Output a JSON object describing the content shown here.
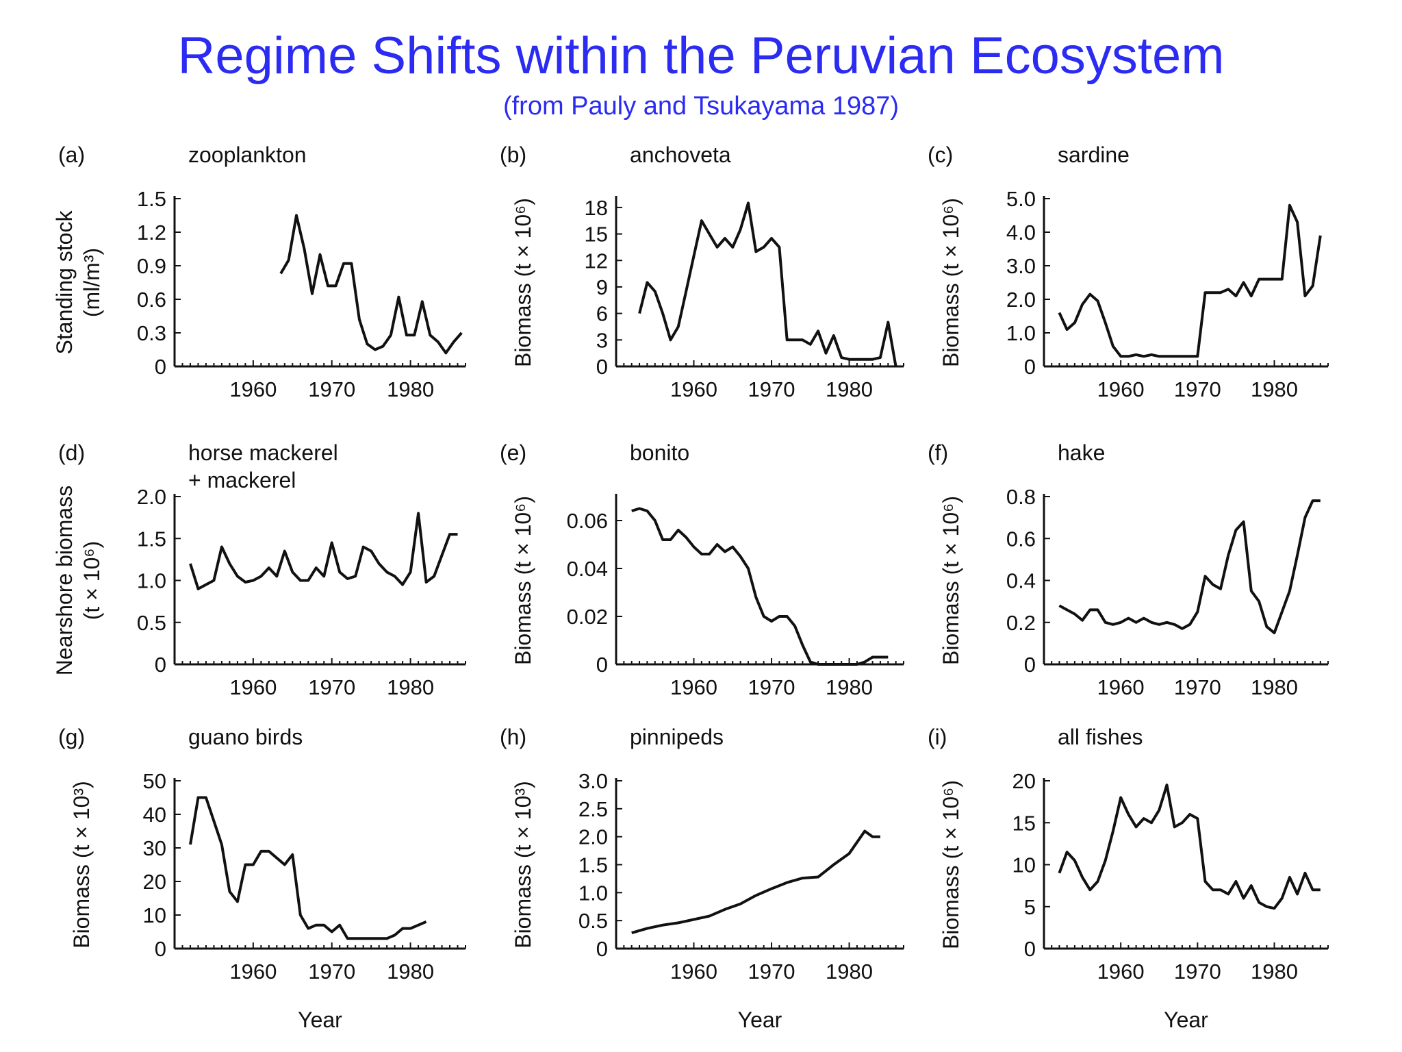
{
  "title": "Regime Shifts within the Peruvian Ecosystem",
  "subtitle": "(from Pauly and Tsukayama 1987)",
  "chart_data": [
    {
      "type": "line",
      "panel": "(a)",
      "title": "zooplankton",
      "ylabel": "Standing stock",
      "ylabel2": "(ml/m³)",
      "xlim": [
        1950,
        1987
      ],
      "ylim": [
        0,
        1.5
      ],
      "xticks": [
        "1960",
        "1970",
        "1980"
      ],
      "yticks": [
        "0",
        "0.3",
        "0.6",
        "0.9",
        "1.2",
        "1.5"
      ],
      "x": [
        1963.5,
        1964.5,
        1965.5,
        1966.5,
        1967.5,
        1968.5,
        1969.5,
        1970.5,
        1971.5,
        1972.5,
        1973.5,
        1974.5,
        1975.5,
        1976.5,
        1977.5,
        1978.5,
        1979.5,
        1980.5,
        1981.5,
        1982.5,
        1983.5,
        1984.5,
        1985.5,
        1986.5
      ],
      "y": [
        0.83,
        0.95,
        1.35,
        1.05,
        0.65,
        1.0,
        0.72,
        0.72,
        0.92,
        0.92,
        0.42,
        0.2,
        0.15,
        0.18,
        0.28,
        0.62,
        0.28,
        0.28,
        0.58,
        0.28,
        0.22,
        0.12,
        0.22,
        0.3
      ]
    },
    {
      "type": "line",
      "panel": "(b)",
      "title": "anchoveta",
      "ylabel": "Biomass  (t × 10⁶)",
      "xlim": [
        1950,
        1987
      ],
      "ylim": [
        0,
        19
      ],
      "xticks": [
        "1960",
        "1970",
        "1980"
      ],
      "yticks": [
        "0",
        "3",
        "6",
        "9",
        "12",
        "15",
        "18"
      ],
      "x": [
        1953,
        1954,
        1955,
        1956,
        1957,
        1958,
        1959,
        1960,
        1961,
        1962,
        1963,
        1964,
        1965,
        1966,
        1967,
        1968,
        1969,
        1970,
        1971,
        1972,
        1973,
        1974,
        1975,
        1976,
        1977,
        1978,
        1979,
        1980,
        1981,
        1982,
        1983,
        1984,
        1985,
        1986
      ],
      "y": [
        6,
        9.5,
        8.5,
        6,
        3,
        4.5,
        8.5,
        12.5,
        16.5,
        15,
        13.5,
        14.5,
        13.5,
        15.5,
        18.5,
        13,
        13.5,
        14.5,
        13.5,
        3,
        3,
        3,
        2.5,
        4,
        1.5,
        3.5,
        1,
        0.8,
        0.8,
        0.8,
        0.8,
        1,
        5,
        0
      ]
    },
    {
      "type": "line",
      "panel": "(c)",
      "title": "sardine",
      "ylabel": "Biomass  (t × 10⁶)",
      "xlim": [
        1950,
        1987
      ],
      "ylim": [
        0,
        5.0
      ],
      "xticks": [
        "1960",
        "1970",
        "1980"
      ],
      "yticks": [
        "0",
        "1.0",
        "2.0",
        "3.0",
        "4.0",
        "5.0"
      ],
      "x": [
        1952,
        1953,
        1954,
        1955,
        1956,
        1957,
        1958,
        1959,
        1960,
        1961,
        1962,
        1963,
        1964,
        1965,
        1966,
        1967,
        1968,
        1969,
        1970,
        1971,
        1972,
        1973,
        1974,
        1975,
        1976,
        1977,
        1978,
        1979,
        1980,
        1981,
        1982,
        1983,
        1984,
        1985,
        1986
      ],
      "y": [
        1.6,
        1.1,
        1.3,
        1.85,
        2.15,
        1.95,
        1.3,
        0.6,
        0.3,
        0.3,
        0.35,
        0.3,
        0.35,
        0.3,
        0.3,
        0.3,
        0.3,
        0.3,
        0.3,
        2.2,
        2.2,
        2.2,
        2.3,
        2.1,
        2.5,
        2.1,
        2.6,
        2.6,
        2.6,
        2.6,
        4.8,
        4.3,
        2.1,
        2.4,
        3.9
      ]
    },
    {
      "type": "line",
      "panel": "(d)",
      "title": "horse mackerel",
      "title2": "+ mackerel",
      "ylabel": "Nearshore biomass",
      "ylabel2": "(t × 10⁶)",
      "xlim": [
        1950,
        1987
      ],
      "ylim": [
        0,
        2.0
      ],
      "xticks": [
        "1960",
        "1970",
        "1980"
      ],
      "yticks": [
        "0",
        "0.5",
        "1.0",
        "1.5",
        "2.0"
      ],
      "x": [
        1952,
        1953,
        1954,
        1955,
        1956,
        1957,
        1958,
        1959,
        1960,
        1961,
        1962,
        1963,
        1964,
        1965,
        1966,
        1967,
        1968,
        1969,
        1970,
        1971,
        1972,
        1973,
        1974,
        1975,
        1976,
        1977,
        1978,
        1979,
        1980,
        1981,
        1982,
        1983,
        1984,
        1985,
        1986
      ],
      "y": [
        1.2,
        0.9,
        0.95,
        1.0,
        1.4,
        1.2,
        1.05,
        0.98,
        1.0,
        1.05,
        1.15,
        1.05,
        1.35,
        1.1,
        1.0,
        1.0,
        1.15,
        1.05,
        1.45,
        1.1,
        1.02,
        1.05,
        1.4,
        1.35,
        1.2,
        1.1,
        1.05,
        0.95,
        1.1,
        1.8,
        0.98,
        1.05,
        1.3,
        1.55,
        1.55
      ]
    },
    {
      "type": "line",
      "panel": "(e)",
      "title": "bonito",
      "ylabel": "Biomass  (t × 10⁶)",
      "xlim": [
        1950,
        1987
      ],
      "ylim": [
        0,
        0.07
      ],
      "xticks": [
        "1960",
        "1970",
        "1980"
      ],
      "yticks": [
        "0",
        "0.02",
        "0.04",
        "0.06"
      ],
      "x": [
        1952,
        1953,
        1954,
        1955,
        1956,
        1957,
        1958,
        1959,
        1960,
        1961,
        1962,
        1963,
        1964,
        1965,
        1966,
        1967,
        1968,
        1969,
        1970,
        1971,
        1972,
        1973,
        1974,
        1975,
        1976,
        1977,
        1978,
        1979,
        1980,
        1981,
        1982,
        1983,
        1984,
        1985
      ],
      "y": [
        0.064,
        0.065,
        0.064,
        0.06,
        0.052,
        0.052,
        0.056,
        0.053,
        0.049,
        0.046,
        0.046,
        0.05,
        0.047,
        0.049,
        0.045,
        0.04,
        0.028,
        0.02,
        0.018,
        0.02,
        0.02,
        0.016,
        0.008,
        0.001,
        0,
        0,
        0,
        0,
        0,
        0,
        0.001,
        0.003,
        0.003,
        0.003
      ]
    },
    {
      "type": "line",
      "panel": "(f)",
      "title": "hake",
      "ylabel": "Biomass  (t × 10⁶)",
      "xlim": [
        1950,
        1987
      ],
      "ylim": [
        0,
        0.8
      ],
      "xticks": [
        "1960",
        "1970",
        "1980"
      ],
      "yticks": [
        "0",
        "0.2",
        "0.4",
        "0.6",
        "0.8"
      ],
      "x": [
        1952,
        1953,
        1954,
        1955,
        1956,
        1957,
        1958,
        1959,
        1960,
        1961,
        1962,
        1963,
        1964,
        1965,
        1966,
        1967,
        1968,
        1969,
        1970,
        1971,
        1972,
        1973,
        1974,
        1975,
        1976,
        1977,
        1978,
        1979,
        1980,
        1981,
        1982,
        1983,
        1984,
        1985,
        1986
      ],
      "y": [
        0.28,
        0.26,
        0.24,
        0.21,
        0.26,
        0.26,
        0.2,
        0.19,
        0.2,
        0.22,
        0.2,
        0.22,
        0.2,
        0.19,
        0.2,
        0.19,
        0.17,
        0.19,
        0.25,
        0.42,
        0.38,
        0.36,
        0.52,
        0.64,
        0.68,
        0.35,
        0.3,
        0.18,
        0.15,
        0.25,
        0.35,
        0.52,
        0.7,
        0.78,
        0.78
      ]
    },
    {
      "type": "line",
      "panel": "(g)",
      "title": "guano birds",
      "ylabel": "Biomass  (t × 10³)",
      "xlim": [
        1950,
        1987
      ],
      "ylim": [
        0,
        50
      ],
      "xticks": [
        "1960",
        "1970",
        "1980"
      ],
      "yticks": [
        "0",
        "10",
        "20",
        "30",
        "40",
        "50"
      ],
      "x": [
        1952,
        1953,
        1954,
        1955,
        1956,
        1957,
        1958,
        1959,
        1960,
        1961,
        1962,
        1963,
        1964,
        1965,
        1966,
        1967,
        1968,
        1969,
        1970,
        1971,
        1972,
        1973,
        1974,
        1975,
        1976,
        1977,
        1978,
        1979,
        1980,
        1981,
        1982
      ],
      "y": [
        31,
        45,
        45,
        38,
        31,
        17,
        14,
        25,
        25,
        29,
        29,
        27,
        25,
        28,
        10,
        6,
        7,
        7,
        5,
        7,
        3,
        3,
        3,
        3,
        3,
        3,
        4,
        6,
        6,
        7,
        8
      ]
    },
    {
      "type": "line",
      "panel": "(h)",
      "title": "pinnipeds",
      "ylabel": "Biomass  (t × 10³)",
      "xlabel": "Year",
      "xlim": [
        1950,
        1987
      ],
      "ylim": [
        0,
        3.0
      ],
      "xticks": [
        "1960",
        "1970",
        "1980"
      ],
      "yticks": [
        "0",
        "0.5",
        "1.0",
        "1.5",
        "2.0",
        "2.5",
        "3.0"
      ],
      "x": [
        1952,
        1954,
        1956,
        1958,
        1960,
        1962,
        1964,
        1966,
        1968,
        1970,
        1972,
        1974,
        1976,
        1978,
        1980,
        1982,
        1983,
        1984
      ],
      "y": [
        0.28,
        0.36,
        0.42,
        0.46,
        0.52,
        0.58,
        0.7,
        0.8,
        0.95,
        1.07,
        1.18,
        1.26,
        1.28,
        1.5,
        1.7,
        2.1,
        2.0,
        2.0
      ]
    },
    {
      "type": "line",
      "panel": "(i)",
      "title": "all fishes",
      "ylabel": "Biomass  (t × 10⁶)",
      "xlim": [
        1950,
        1987
      ],
      "ylim": [
        0,
        20
      ],
      "xticks": [
        "1960",
        "1970",
        "1980"
      ],
      "yticks": [
        "0",
        "5",
        "10",
        "15",
        "20"
      ],
      "x": [
        1952,
        1953,
        1954,
        1955,
        1956,
        1957,
        1958,
        1959,
        1960,
        1961,
        1962,
        1963,
        1964,
        1965,
        1966,
        1967,
        1968,
        1969,
        1970,
        1971,
        1972,
        1973,
        1974,
        1975,
        1976,
        1977,
        1978,
        1979,
        1980,
        1981,
        1982,
        1983,
        1984,
        1985,
        1986
      ],
      "y": [
        9,
        11.5,
        10.5,
        8.5,
        7,
        8,
        10.5,
        14,
        18,
        16,
        14.5,
        15.5,
        15,
        16.5,
        19.5,
        14.5,
        15,
        16,
        15.5,
        8,
        7,
        7,
        6.5,
        8,
        6,
        7.5,
        5.5,
        5,
        4.8,
        6,
        8.5,
        6.5,
        9,
        7,
        7
      ]
    }
  ],
  "shared_xlabels": [
    "Year",
    "Year",
    "Year"
  ]
}
